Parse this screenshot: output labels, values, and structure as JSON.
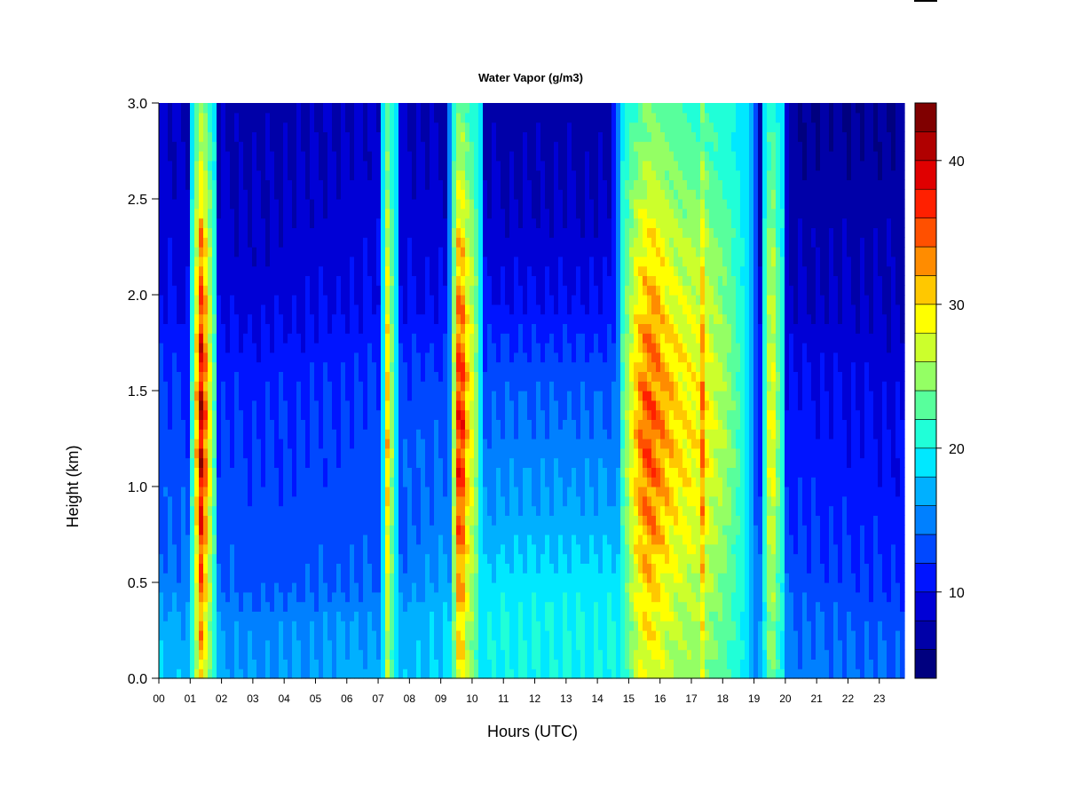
{
  "chart_data": {
    "type": "heatmap",
    "title": "Water Vapor (g/m3)",
    "xlabel": "Hours (UTC)",
    "ylabel": "Height (km)",
    "xlim": [
      0,
      23.8
    ],
    "ylim": [
      0.0,
      3.0
    ],
    "x_ticks": [
      {
        "value": 0,
        "label": "00"
      },
      {
        "value": 1,
        "label": "01"
      },
      {
        "value": 2,
        "label": "02"
      },
      {
        "value": 3,
        "label": "03"
      },
      {
        "value": 4,
        "label": "04"
      },
      {
        "value": 5,
        "label": "05"
      },
      {
        "value": 6,
        "label": "06"
      },
      {
        "value": 7,
        "label": "07"
      },
      {
        "value": 8,
        "label": "08"
      },
      {
        "value": 9,
        "label": "09"
      },
      {
        "value": 10,
        "label": "10"
      },
      {
        "value": 11,
        "label": "11"
      },
      {
        "value": 12,
        "label": "12"
      },
      {
        "value": 13,
        "label": "13"
      },
      {
        "value": 14,
        "label": "14"
      },
      {
        "value": 15,
        "label": "15"
      },
      {
        "value": 16,
        "label": "16"
      },
      {
        "value": 17,
        "label": "17"
      },
      {
        "value": 18,
        "label": "18"
      },
      {
        "value": 19,
        "label": "19"
      },
      {
        "value": 20,
        "label": "20"
      },
      {
        "value": 21,
        "label": "21"
      },
      {
        "value": 22,
        "label": "22"
      },
      {
        "value": 23,
        "label": "23"
      }
    ],
    "y_ticks": [
      {
        "value": 0.0,
        "label": "0.0"
      },
      {
        "value": 0.5,
        "label": "0.5"
      },
      {
        "value": 1.0,
        "label": "1.0"
      },
      {
        "value": 1.5,
        "label": "1.5"
      },
      {
        "value": 2.0,
        "label": "2.0"
      },
      {
        "value": 2.5,
        "label": "2.5"
      },
      {
        "value": 3.0,
        "label": "3.0"
      }
    ],
    "colorbar": {
      "min": 4,
      "max": 44,
      "step": 2,
      "ticks": [
        {
          "value": 10,
          "label": "10"
        },
        {
          "value": 20,
          "label": "20"
        },
        {
          "value": 30,
          "label": "30"
        },
        {
          "value": 40,
          "label": "40"
        }
      ],
      "colors": [
        "#00007f",
        "#0000a8",
        "#0000d6",
        "#0014ff",
        "#0048ff",
        "#0080ff",
        "#00b0ff",
        "#00e8ff",
        "#20ffd8",
        "#58ff9c",
        "#94ff64",
        "#ccff2c",
        "#ffff00",
        "#ffc800",
        "#ff8c00",
        "#ff5000",
        "#ff2000",
        "#e00000",
        "#b00000",
        "#800000"
      ]
    },
    "background_profile": {
      "heights_km": [
        0.0,
        0.3,
        0.5,
        0.8,
        1.2,
        1.6,
        2.0,
        2.5,
        3.0
      ],
      "base_values_by_hour": [
        {
          "x": 0.0,
          "values": [
            18,
            17,
            15,
            14,
            13,
            12,
            10,
            9,
            8
          ]
        },
        {
          "x": 3.0,
          "values": [
            16,
            15,
            13,
            13,
            12,
            11,
            9,
            8,
            7
          ]
        },
        {
          "x": 7.0,
          "values": [
            17,
            16,
            14,
            13,
            13,
            12,
            10,
            9,
            8
          ]
        },
        {
          "x": 11.0,
          "values": [
            20,
            20,
            19,
            17,
            15,
            13,
            10,
            8,
            7
          ]
        },
        {
          "x": 14.5,
          "values": [
            20,
            20,
            19,
            17,
            15,
            13,
            10,
            8,
            7
          ]
        },
        {
          "x": 20.5,
          "values": [
            15,
            14,
            13,
            12,
            11,
            10,
            8,
            7,
            6
          ]
        },
        {
          "x": 23.8,
          "values": [
            14,
            13,
            12,
            11,
            10,
            9,
            8,
            7,
            6
          ]
        }
      ]
    },
    "moist_events": [
      {
        "start": 1.0,
        "end": 1.85,
        "peak_x": 1.35,
        "max": 43
      },
      {
        "start": 7.15,
        "end": 7.6,
        "peak_x": 7.3,
        "max": 33
      },
      {
        "start": 9.3,
        "end": 10.3,
        "peak_x": 9.6,
        "max": 42
      },
      {
        "start": 14.75,
        "end": 18.9,
        "peak_x": 15.5,
        "max": 41
      },
      {
        "start": 17.3,
        "end": 17.55,
        "peak_x": 17.4,
        "max": 43
      },
      {
        "start": 19.25,
        "end": 20.0,
        "peak_x": 19.55,
        "max": 31
      }
    ]
  }
}
